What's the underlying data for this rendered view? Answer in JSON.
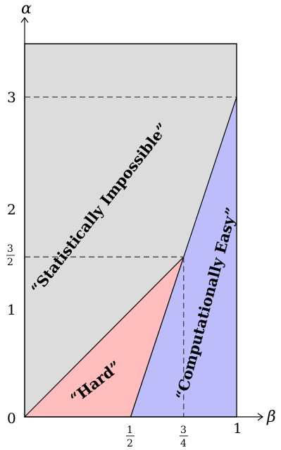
{
  "axes": {
    "x_name": "β",
    "y_name": "α",
    "origin_label": "0",
    "x_ticks": [
      {
        "value": 0.5,
        "num": "1",
        "den": "2"
      },
      {
        "value": 0.75,
        "num": "3",
        "den": "4"
      },
      {
        "value": 1,
        "label": "1"
      }
    ],
    "y_ticks": [
      {
        "value": 1,
        "label": "1"
      },
      {
        "value": 1.5,
        "num": "3",
        "den": "2"
      },
      {
        "value": 2,
        "label": "2"
      },
      {
        "value": 3,
        "label": "3"
      }
    ],
    "x_range": [
      0,
      1
    ],
    "y_range": [
      0,
      3.5
    ]
  },
  "regions": {
    "impossible": {
      "label": "“Statistically Impossible”",
      "color": "#dcdcdc"
    },
    "hard": {
      "label": "“Hard”",
      "color": "#ffbdbd"
    },
    "easy": {
      "label": "“Computationally Easy”",
      "color": "#bdbdfc"
    }
  },
  "boundaries": {
    "hard_upper": [
      [
        0,
        0
      ],
      [
        0.75,
        1.5
      ]
    ],
    "hard_lower": [
      [
        0.5,
        0
      ],
      [
        0.75,
        1.5
      ]
    ],
    "easy_upper": [
      [
        0.75,
        1.5
      ],
      [
        1,
        3
      ]
    ]
  },
  "dashed_guides": {
    "horizontal_at": [
      1.5,
      3
    ],
    "vertical_at": [
      0.75
    ]
  }
}
